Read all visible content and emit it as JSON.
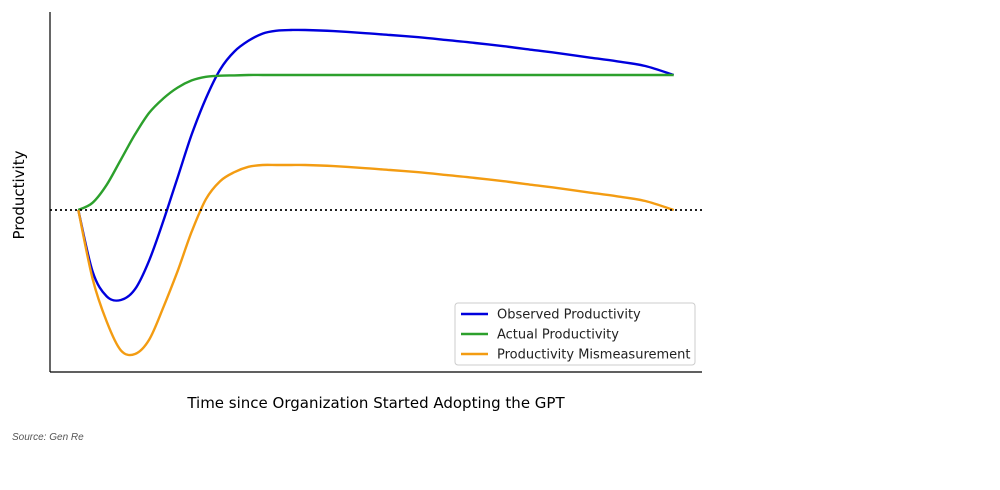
{
  "chart_data": {
    "type": "line",
    "title": "",
    "xlabel": "Time since Organization Started Adopting the GPT",
    "ylabel": "Productivity",
    "xlim": [
      -1,
      22
    ],
    "ylim": [
      -4.5,
      5.5
    ],
    "grid": false,
    "legend_position": "bottom-right",
    "x_ticks": [],
    "y_ticks": [],
    "reference_line": {
      "y": 0,
      "style": "dotted",
      "color": "#000000"
    },
    "x": [
      0,
      0.5,
      1,
      1.5,
      2,
      2.5,
      3,
      3.5,
      4,
      4.5,
      5,
      5.5,
      6,
      6.5,
      7,
      7.5,
      8,
      9,
      10,
      11,
      12,
      13,
      14,
      15,
      16,
      17,
      18,
      19,
      20,
      21
    ],
    "series": [
      {
        "name": "Observed Productivity",
        "color": "#0000dd",
        "values": [
          0,
          -1.7,
          -2.4,
          -2.5,
          -2.2,
          -1.4,
          -0.3,
          0.9,
          2.1,
          3.1,
          3.9,
          4.4,
          4.7,
          4.9,
          4.98,
          5.0,
          5.0,
          4.97,
          4.92,
          4.86,
          4.8,
          4.72,
          4.64,
          4.55,
          4.45,
          4.35,
          4.24,
          4.13,
          4.0,
          3.75
        ]
      },
      {
        "name": "Actual Productivity",
        "color": "#2ca02c",
        "values": [
          0,
          0.2,
          0.7,
          1.4,
          2.1,
          2.7,
          3.1,
          3.4,
          3.6,
          3.7,
          3.73,
          3.74,
          3.75,
          3.75,
          3.75,
          3.75,
          3.75,
          3.75,
          3.75,
          3.75,
          3.75,
          3.75,
          3.75,
          3.75,
          3.75,
          3.75,
          3.75,
          3.75,
          3.75,
          3.75
        ]
      },
      {
        "name": "Productivity Mismeasurement",
        "color": "#f39c12",
        "values": [
          0,
          -1.9,
          -3.1,
          -3.9,
          -4.0,
          -3.6,
          -2.7,
          -1.7,
          -0.6,
          0.3,
          0.8,
          1.05,
          1.2,
          1.25,
          1.25,
          1.25,
          1.25,
          1.22,
          1.17,
          1.11,
          1.05,
          0.97,
          0.89,
          0.8,
          0.7,
          0.6,
          0.49,
          0.38,
          0.25,
          0.0
        ]
      }
    ]
  },
  "source_note": "Source: Gen Re"
}
